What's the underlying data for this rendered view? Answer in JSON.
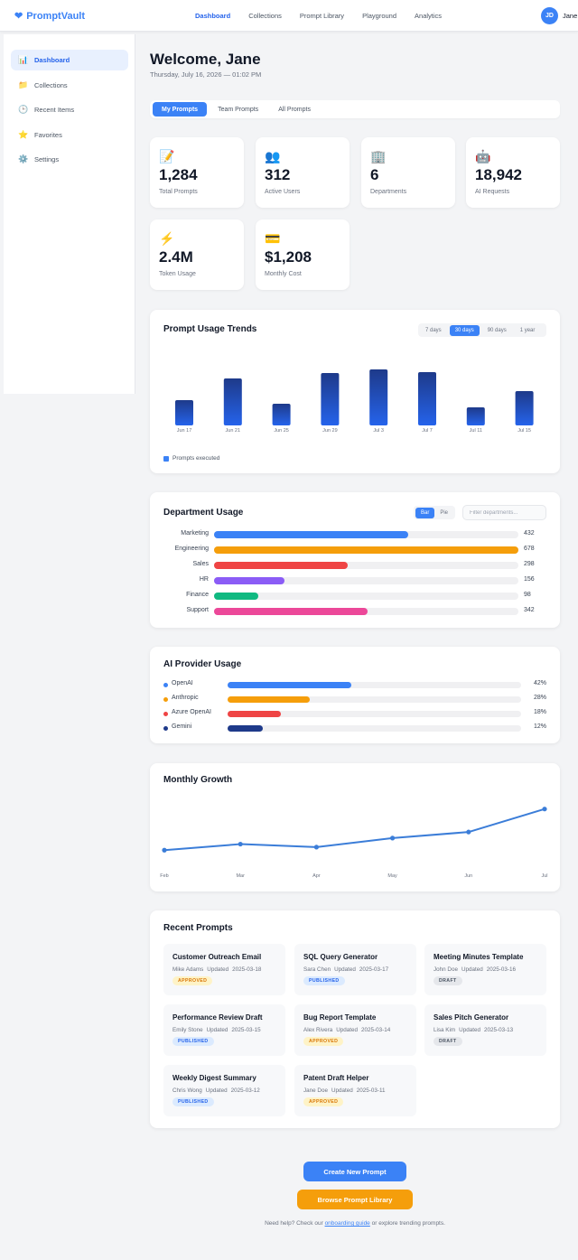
{
  "app": {
    "name": "PromptVault",
    "logo_icon": "heart-icon"
  },
  "nav": {
    "items": [
      "Dashboard",
      "Collections",
      "Prompt Library",
      "Playground",
      "Analytics"
    ],
    "active": "Dashboard"
  },
  "user": {
    "initials": "JD",
    "name": "Jane"
  },
  "sidebar": {
    "items": [
      {
        "label": "Dashboard",
        "icon": "bar-chart-icon",
        "glyph": "📊",
        "active": true
      },
      {
        "label": "Collections",
        "icon": "folder-icon",
        "glyph": "📁",
        "active": false
      },
      {
        "label": "Recent Items",
        "icon": "clock-icon",
        "glyph": "🕒",
        "active": false
      },
      {
        "label": "Favorites",
        "icon": "star-icon",
        "glyph": "⭐",
        "active": false
      },
      {
        "label": "Settings",
        "icon": "gear-icon",
        "glyph": "⚙️",
        "active": false
      }
    ]
  },
  "header": {
    "welcome": "Welcome, Jane",
    "datetime": "Thursday, July 16, 2026 — 01:02 PM"
  },
  "tabs": {
    "items": [
      "My Prompts",
      "Team Prompts",
      "All Prompts"
    ],
    "active": "My Prompts"
  },
  "stats": [
    {
      "icon": "memo-icon",
      "glyph": "📝",
      "value": "1,284",
      "label": "Total Prompts"
    },
    {
      "icon": "users-icon",
      "glyph": "👥",
      "value": "312",
      "label": "Active Users"
    },
    {
      "icon": "building-icon",
      "glyph": "🏢",
      "value": "6",
      "label": "Departments"
    },
    {
      "icon": "robot-icon",
      "glyph": "🤖",
      "value": "18,942",
      "label": "AI Requests"
    },
    {
      "icon": "lightning-icon",
      "glyph": "⚡",
      "value": "2.4M",
      "label": "Token Usage"
    },
    {
      "icon": "credit-card-icon",
      "glyph": "💳",
      "value": "$1,208",
      "label": "Monthly Cost"
    }
  ],
  "usage_trends": {
    "title": "Prompt Usage Trends",
    "ranges": [
      "7 days",
      "30 days",
      "90 days",
      "1 year"
    ],
    "active_range": "30 days",
    "legend": "Prompts executed"
  },
  "department": {
    "title": "Department Usage",
    "toggles": [
      "Bar",
      "Pie"
    ],
    "active_toggle": "Bar",
    "filter_placeholder": "Filter departments...",
    "rows": [
      {
        "name": "Marketing",
        "value": 432,
        "color": "#3b82f6"
      },
      {
        "name": "Engineering",
        "value": 678,
        "color": "#f59e0b"
      },
      {
        "name": "Sales",
        "value": 298,
        "color": "#ef4444"
      },
      {
        "name": "HR",
        "value": 156,
        "color": "#8b5cf6"
      },
      {
        "name": "Finance",
        "value": 98,
        "color": "#10b981"
      },
      {
        "name": "Support",
        "value": 342,
        "color": "#ec4899"
      }
    ]
  },
  "providers": {
    "title": "AI Provider Usage",
    "rows": [
      {
        "name": "OpenAI",
        "percent": 42,
        "label": "42%",
        "color": "#3b82f6"
      },
      {
        "name": "Anthropic",
        "percent": 28,
        "label": "28%",
        "color": "#f59e0b"
      },
      {
        "name": "Azure OpenAI",
        "percent": 18,
        "label": "18%",
        "color": "#ef4444"
      },
      {
        "name": "Gemini",
        "percent": 12,
        "label": "12%",
        "color": "#1e3a8a"
      }
    ]
  },
  "growth": {
    "title": "Monthly Growth"
  },
  "recent": {
    "title": "Recent Prompts",
    "updated_prefix": "Updated",
    "items": [
      {
        "title": "Customer Outreach Email",
        "author": "Mike Adams",
        "date": "2025-03-18",
        "status": "APPROVED"
      },
      {
        "title": "SQL Query Generator",
        "author": "Sara Chen",
        "date": "2025-03-17",
        "status": "PUBLISHED"
      },
      {
        "title": "Meeting Minutes Template",
        "author": "John Doe",
        "date": "2025-03-16",
        "status": "DRAFT"
      },
      {
        "title": "Performance Review Draft",
        "author": "Emily Stone",
        "date": "2025-03-15",
        "status": "PUBLISHED"
      },
      {
        "title": "Bug Report Template",
        "author": "Alex Rivera",
        "date": "2025-03-14",
        "status": "APPROVED"
      },
      {
        "title": "Sales Pitch Generator",
        "author": "Lisa Kim",
        "date": "2025-03-13",
        "status": "DRAFT"
      },
      {
        "title": "Weekly Digest Summary",
        "author": "Chris Wong",
        "date": "2025-03-12",
        "status": "PUBLISHED"
      },
      {
        "title": "Patent Draft Helper",
        "author": "Jane Doe",
        "date": "2025-03-11",
        "status": "APPROVED"
      }
    ]
  },
  "actions": {
    "create": "Create New Prompt",
    "browse": "Browse Prompt Library"
  },
  "help": {
    "prefix": "Need help? Check our",
    "link": "onboarding guide",
    "suffix": "or explore trending prompts."
  },
  "chart_data": [
    {
      "type": "bar",
      "title": "Prompt Usage Trends",
      "categories": [
        "Jun 17",
        "Jun 21",
        "Jun 25",
        "Jun 29",
        "Jul 3",
        "Jul 7",
        "Jul 11",
        "Jul 15"
      ],
      "series": [
        {
          "name": "Prompts executed",
          "values": [
            28,
            52,
            24,
            58,
            62,
            59,
            20,
            38
          ]
        }
      ],
      "ylim": [
        0,
        70
      ],
      "grid": false,
      "legend": "bottom-left",
      "color": "#1e3a8a"
    },
    {
      "type": "line",
      "title": "Monthly Growth",
      "categories": [
        "Feb",
        "Mar",
        "Apr",
        "May",
        "Jun",
        "Jul"
      ],
      "series": [
        {
          "values": [
            22,
            32,
            27,
            42,
            52,
            90
          ]
        }
      ],
      "ylim": [
        0,
        100
      ],
      "grid": false,
      "color": "#3b7dd8"
    }
  ]
}
